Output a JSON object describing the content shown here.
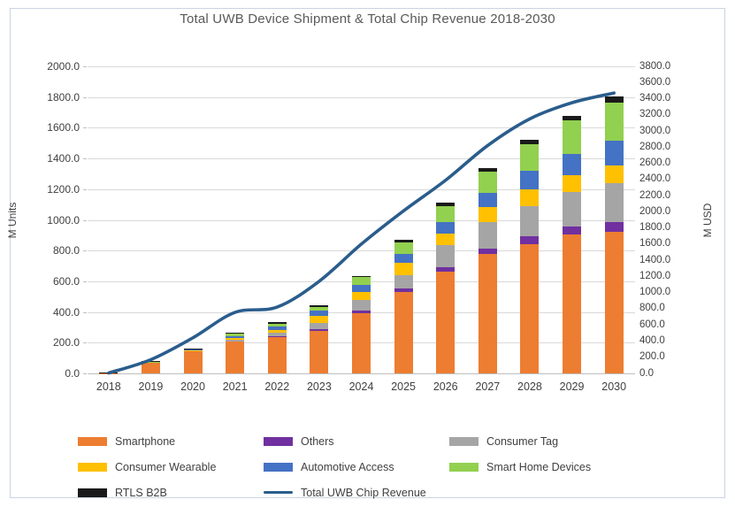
{
  "title": "Total UWB Device Shipment & Total Chip Revenue 2018-2030",
  "left_axis": {
    "title": "M Units",
    "min": 0,
    "max": 2000,
    "step": 200,
    "ticks": [
      "0.0",
      "200.0",
      "400.0",
      "600.0",
      "800.0",
      "1000.0",
      "1200.0",
      "1400.0",
      "1600.0",
      "1800.0",
      "2000.0"
    ]
  },
  "right_axis": {
    "title": "M USD",
    "min": 0,
    "max": 3800,
    "step": 200,
    "ticks": [
      "0.0",
      "200.0",
      "400.0",
      "600.0",
      "800.0",
      "1000.0",
      "1200.0",
      "1400.0",
      "1600.0",
      "1800.0",
      "2000.0",
      "2200.0",
      "2400.0",
      "2600.0",
      "2800.0",
      "3000.0",
      "3200.0",
      "3400.0",
      "3600.0",
      "3800.0"
    ]
  },
  "chart_data": {
    "type": "bar",
    "subtype": "stacked-bar-with-line",
    "title": "Total UWB Device Shipment & Total Chip Revenue 2018-2030",
    "categories": [
      "2018",
      "2019",
      "2020",
      "2021",
      "2022",
      "2023",
      "2024",
      "2025",
      "2026",
      "2027",
      "2028",
      "2029",
      "2030"
    ],
    "series": [
      {
        "name": "Smartphone",
        "color": "#ED7D31",
        "values": [
          2,
          67,
          142,
          205,
          234,
          278,
          393,
          531,
          665,
          776,
          843,
          905,
          920
        ]
      },
      {
        "name": "Others",
        "color": "#7030A0",
        "values": [
          0,
          1,
          2,
          4,
          6,
          9,
          15,
          21,
          29,
          39,
          48,
          53,
          67
        ]
      },
      {
        "name": "Consumer Tag",
        "color": "#A5A5A5",
        "values": [
          0,
          2,
          3,
          11,
          26,
          44,
          71,
          90,
          139,
          172,
          201,
          224,
          250
        ]
      },
      {
        "name": "Consumer Wearable",
        "color": "#FFC000",
        "values": [
          0,
          1,
          3,
          10,
          18,
          46,
          52,
          77,
          77,
          96,
          106,
          111,
          115
        ]
      },
      {
        "name": "Automotive Access",
        "color": "#4472C4",
        "values": [
          0,
          1,
          4,
          13,
          19,
          31,
          44,
          61,
          77,
          95,
          124,
          138,
          163
        ]
      },
      {
        "name": "Smart Home Devices",
        "color": "#92D050",
        "values": [
          0,
          1,
          2,
          14,
          19,
          23,
          51,
          73,
          101,
          139,
          173,
          215,
          250
        ]
      },
      {
        "name": "RTLS B2B",
        "color": "#1A1A1A",
        "values": [
          2,
          9,
          5,
          7,
          13,
          14,
          10,
          19,
          23,
          20,
          25,
          30,
          38
        ]
      }
    ],
    "line_series": {
      "name": "Total UWB Chip Revenue",
      "color": "#2A5D8C",
      "axis": "right",
      "values": [
        5,
        170,
        440,
        755,
        820,
        1140,
        1600,
        2010,
        2390,
        2820,
        3150,
        3350,
        3470
      ]
    },
    "ylabel_left": "M Units",
    "ylabel_right": "M USD",
    "left_ylim": [
      0,
      2000
    ],
    "right_ylim": [
      0,
      3800
    ],
    "grid": true,
    "legend_position": "bottom"
  },
  "legend": {
    "items": [
      {
        "label": "Smartphone",
        "color": "#ED7D31",
        "type": "box"
      },
      {
        "label": "Others",
        "color": "#7030A0",
        "type": "box"
      },
      {
        "label": "Consumer Tag",
        "color": "#A5A5A5",
        "type": "box"
      },
      {
        "label": "Consumer Wearable",
        "color": "#FFC000",
        "type": "box"
      },
      {
        "label": "Automotive Access",
        "color": "#4472C4",
        "type": "box"
      },
      {
        "label": "Smart Home Devices",
        "color": "#92D050",
        "type": "box"
      },
      {
        "label": "RTLS B2B",
        "color": "#1A1A1A",
        "type": "box"
      },
      {
        "label": "Total UWB Chip Revenue",
        "color": "#2A5D8C",
        "type": "line"
      }
    ]
  }
}
